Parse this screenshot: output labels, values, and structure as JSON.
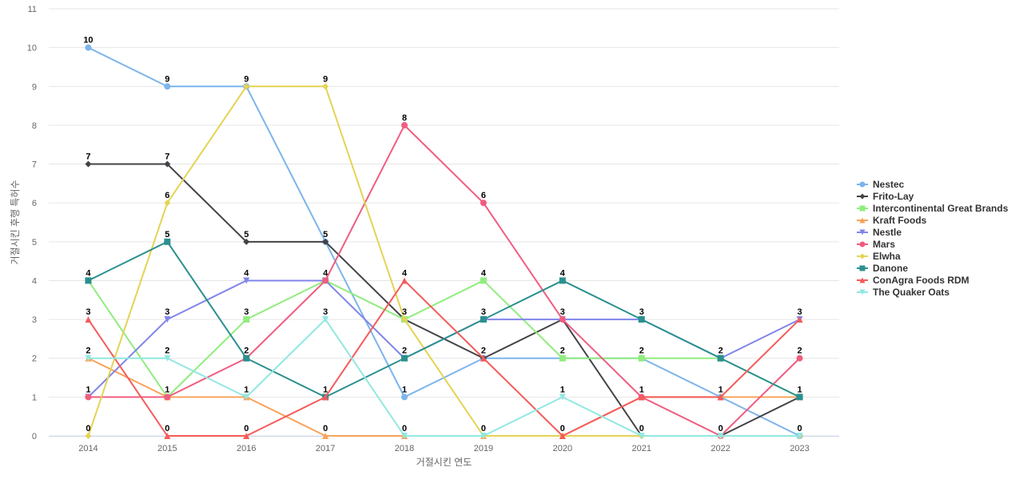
{
  "chart_data": {
    "type": "line",
    "title": "",
    "xlabel": "거절시킨 연도",
    "ylabel": "거절시킨 후행 특허수",
    "x": [
      "2014",
      "2015",
      "2016",
      "2017",
      "2018",
      "2019",
      "2020",
      "2021",
      "2022",
      "2023"
    ],
    "yticks": [
      "0",
      "1",
      "2",
      "3",
      "4",
      "5",
      "6",
      "7",
      "8",
      "9",
      "10",
      "11"
    ],
    "ylim": [
      0,
      11
    ],
    "grid": "horizontal",
    "legend_position": "right",
    "series": [
      {
        "name": "Nestec",
        "color": "#7cb5ec",
        "marker": "circle",
        "values": [
          10,
          9,
          9,
          5,
          1,
          2,
          2,
          2,
          1,
          0
        ]
      },
      {
        "name": "Frito-Lay",
        "color": "#434348",
        "marker": "diamond",
        "values": [
          7,
          7,
          5,
          5,
          3,
          2,
          3,
          0,
          0,
          1
        ]
      },
      {
        "name": "Intercontinental Great Brands",
        "color": "#90ed7d",
        "marker": "square",
        "values": [
          4,
          1,
          3,
          4,
          3,
          4,
          2,
          2,
          2,
          1
        ]
      },
      {
        "name": "Kraft Foods",
        "color": "#f7a35c",
        "marker": "triangle",
        "values": [
          2,
          1,
          1,
          0,
          0,
          0,
          0,
          1,
          1,
          1
        ]
      },
      {
        "name": "Nestle",
        "color": "#8085e9",
        "marker": "triangle-down",
        "values": [
          1,
          3,
          4,
          4,
          2,
          3,
          3,
          3,
          2,
          3
        ]
      },
      {
        "name": "Mars",
        "color": "#f15c80",
        "marker": "circle",
        "values": [
          1,
          1,
          2,
          4,
          8,
          6,
          3,
          1,
          0,
          2
        ]
      },
      {
        "name": "Elwha",
        "color": "#e4d354",
        "marker": "diamond",
        "values": [
          0,
          6,
          9,
          9,
          3,
          0,
          0,
          0,
          0,
          0
        ]
      },
      {
        "name": "Danone",
        "color": "#2b908f",
        "marker": "square",
        "values": [
          4,
          5,
          2,
          1,
          2,
          3,
          4,
          3,
          2,
          1
        ]
      },
      {
        "name": "ConAgra Foods RDM",
        "color": "#f45b5b",
        "marker": "triangle",
        "values": [
          3,
          0,
          0,
          1,
          4,
          2,
          0,
          1,
          1,
          3
        ]
      },
      {
        "name": "The Quaker Oats",
        "color": "#91e8e1",
        "marker": "triangle-down",
        "values": [
          2,
          2,
          1,
          3,
          0,
          0,
          1,
          0,
          0,
          0
        ]
      }
    ],
    "data_labels": [
      [
        "10",
        "9",
        "9",
        "9",
        "8",
        "6",
        "4",
        "3",
        "2",
        "3"
      ],
      [
        "7",
        "7",
        "5",
        "5",
        "4",
        "4",
        "3",
        "2",
        "1",
        "2"
      ],
      [
        "4",
        "6",
        "4",
        "4",
        "3",
        "3",
        "2",
        "1",
        "0",
        "1"
      ],
      [
        "3",
        "5",
        "3",
        "3",
        "2",
        "2",
        "1",
        "0",
        "",
        "0"
      ],
      [
        "2",
        "3",
        "2",
        "1",
        "1",
        "0",
        "0",
        "",
        "",
        ""
      ],
      [
        "1",
        "2",
        "1",
        "0",
        "0",
        "",
        "",
        "",
        "",
        ""
      ],
      [
        "0",
        "1",
        "0",
        "",
        "",
        "",
        "",
        "",
        "",
        ""
      ],
      [
        "",
        "0",
        "",
        "",
        "",
        "",
        "",
        "",
        "",
        ""
      ]
    ]
  }
}
